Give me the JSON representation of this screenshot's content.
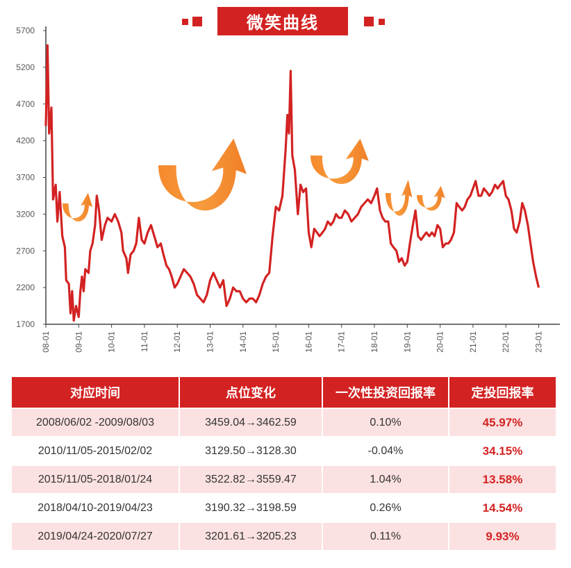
{
  "title": "微笑曲线",
  "chart_data": {
    "type": "line",
    "title": "微笑曲线",
    "ylim": [
      1700,
      5700
    ],
    "yticks": [
      1700,
      2200,
      2700,
      3200,
      3700,
      4200,
      4700,
      5200,
      5700
    ],
    "xticks": [
      "08-01",
      "09-01",
      "10-01",
      "11-01",
      "12-01",
      "13-01",
      "14-01",
      "15-01",
      "16-01",
      "17-01",
      "18-01",
      "19-01",
      "20-01",
      "21-01",
      "22-01",
      "23-01"
    ],
    "x_start": 2008.0,
    "grid": false,
    "series": [
      {
        "color": "#d32222",
        "points": [
          [
            2008.0,
            4400
          ],
          [
            2008.05,
            5500
          ],
          [
            2008.1,
            4300
          ],
          [
            2008.17,
            4650
          ],
          [
            2008.22,
            3400
          ],
          [
            2008.3,
            3600
          ],
          [
            2008.35,
            3100
          ],
          [
            2008.42,
            3500
          ],
          [
            2008.5,
            2900
          ],
          [
            2008.58,
            2750
          ],
          [
            2008.62,
            2300
          ],
          [
            2008.7,
            2250
          ],
          [
            2008.75,
            1850
          ],
          [
            2008.8,
            2150
          ],
          [
            2008.85,
            1750
          ],
          [
            2008.92,
            1950
          ],
          [
            2009.0,
            1800
          ],
          [
            2009.05,
            2150
          ],
          [
            2009.1,
            2350
          ],
          [
            2009.15,
            2150
          ],
          [
            2009.2,
            2450
          ],
          [
            2009.3,
            2400
          ],
          [
            2009.35,
            2700
          ],
          [
            2009.42,
            2800
          ],
          [
            2009.5,
            3050
          ],
          [
            2009.55,
            3450
          ],
          [
            2009.62,
            3250
          ],
          [
            2009.7,
            2850
          ],
          [
            2009.8,
            3050
          ],
          [
            2009.88,
            3150
          ],
          [
            2010.0,
            3100
          ],
          [
            2010.1,
            3200
          ],
          [
            2010.2,
            3100
          ],
          [
            2010.3,
            2950
          ],
          [
            2010.35,
            2700
          ],
          [
            2010.45,
            2600
          ],
          [
            2010.5,
            2400
          ],
          [
            2010.58,
            2650
          ],
          [
            2010.67,
            2700
          ],
          [
            2010.75,
            2800
          ],
          [
            2010.83,
            3150
          ],
          [
            2010.92,
            2850
          ],
          [
            2011.0,
            2800
          ],
          [
            2011.1,
            2950
          ],
          [
            2011.2,
            3050
          ],
          [
            2011.3,
            2900
          ],
          [
            2011.4,
            2750
          ],
          [
            2011.5,
            2800
          ],
          [
            2011.58,
            2650
          ],
          [
            2011.67,
            2500
          ],
          [
            2011.75,
            2450
          ],
          [
            2011.83,
            2350
          ],
          [
            2011.92,
            2200
          ],
          [
            2012.0,
            2250
          ],
          [
            2012.1,
            2350
          ],
          [
            2012.2,
            2450
          ],
          [
            2012.3,
            2400
          ],
          [
            2012.4,
            2350
          ],
          [
            2012.5,
            2250
          ],
          [
            2012.6,
            2100
          ],
          [
            2012.7,
            2050
          ],
          [
            2012.8,
            2000
          ],
          [
            2012.9,
            2100
          ],
          [
            2013.0,
            2300
          ],
          [
            2013.1,
            2400
          ],
          [
            2013.2,
            2300
          ],
          [
            2013.3,
            2200
          ],
          [
            2013.4,
            2300
          ],
          [
            2013.5,
            1950
          ],
          [
            2013.6,
            2050
          ],
          [
            2013.7,
            2200
          ],
          [
            2013.8,
            2150
          ],
          [
            2013.9,
            2150
          ],
          [
            2014.0,
            2050
          ],
          [
            2014.1,
            2000
          ],
          [
            2014.2,
            2050
          ],
          [
            2014.3,
            2050
          ],
          [
            2014.4,
            2000
          ],
          [
            2014.5,
            2100
          ],
          [
            2014.6,
            2250
          ],
          [
            2014.7,
            2350
          ],
          [
            2014.8,
            2400
          ],
          [
            2014.9,
            2900
          ],
          [
            2015.0,
            3300
          ],
          [
            2015.1,
            3250
          ],
          [
            2015.2,
            3450
          ],
          [
            2015.3,
            4100
          ],
          [
            2015.35,
            4550
          ],
          [
            2015.4,
            4300
          ],
          [
            2015.45,
            5150
          ],
          [
            2015.5,
            4000
          ],
          [
            2015.58,
            3800
          ],
          [
            2015.67,
            3200
          ],
          [
            2015.75,
            3600
          ],
          [
            2015.83,
            3500
          ],
          [
            2015.92,
            3550
          ],
          [
            2016.0,
            2950
          ],
          [
            2016.08,
            2750
          ],
          [
            2016.17,
            3000
          ],
          [
            2016.25,
            2950
          ],
          [
            2016.33,
            2900
          ],
          [
            2016.42,
            2950
          ],
          [
            2016.5,
            3000
          ],
          [
            2016.58,
            3100
          ],
          [
            2016.67,
            3050
          ],
          [
            2016.75,
            3100
          ],
          [
            2016.83,
            3200
          ],
          [
            2016.92,
            3150
          ],
          [
            2017.0,
            3150
          ],
          [
            2017.1,
            3250
          ],
          [
            2017.2,
            3200
          ],
          [
            2017.3,
            3100
          ],
          [
            2017.4,
            3150
          ],
          [
            2017.5,
            3200
          ],
          [
            2017.6,
            3300
          ],
          [
            2017.7,
            3350
          ],
          [
            2017.8,
            3400
          ],
          [
            2017.9,
            3350
          ],
          [
            2018.0,
            3450
          ],
          [
            2018.08,
            3550
          ],
          [
            2018.17,
            3250
          ],
          [
            2018.25,
            3150
          ],
          [
            2018.33,
            3100
          ],
          [
            2018.42,
            3100
          ],
          [
            2018.5,
            2800
          ],
          [
            2018.58,
            2750
          ],
          [
            2018.67,
            2700
          ],
          [
            2018.75,
            2550
          ],
          [
            2018.83,
            2600
          ],
          [
            2018.92,
            2500
          ],
          [
            2019.0,
            2550
          ],
          [
            2019.08,
            2800
          ],
          [
            2019.17,
            3050
          ],
          [
            2019.25,
            3250
          ],
          [
            2019.33,
            2900
          ],
          [
            2019.42,
            2850
          ],
          [
            2019.5,
            2900
          ],
          [
            2019.58,
            2950
          ],
          [
            2019.67,
            2900
          ],
          [
            2019.75,
            2950
          ],
          [
            2019.83,
            2900
          ],
          [
            2019.92,
            3050
          ],
          [
            2020.0,
            3000
          ],
          [
            2020.08,
            2750
          ],
          [
            2020.17,
            2800
          ],
          [
            2020.25,
            2800
          ],
          [
            2020.33,
            2850
          ],
          [
            2020.42,
            2950
          ],
          [
            2020.5,
            3350
          ],
          [
            2020.58,
            3300
          ],
          [
            2020.67,
            3250
          ],
          [
            2020.75,
            3300
          ],
          [
            2020.83,
            3400
          ],
          [
            2020.92,
            3450
          ],
          [
            2021.0,
            3550
          ],
          [
            2021.08,
            3650
          ],
          [
            2021.17,
            3450
          ],
          [
            2021.25,
            3450
          ],
          [
            2021.33,
            3550
          ],
          [
            2021.42,
            3500
          ],
          [
            2021.5,
            3450
          ],
          [
            2021.58,
            3500
          ],
          [
            2021.67,
            3600
          ],
          [
            2021.75,
            3550
          ],
          [
            2021.83,
            3600
          ],
          [
            2021.92,
            3650
          ],
          [
            2022.0,
            3450
          ],
          [
            2022.08,
            3400
          ],
          [
            2022.17,
            3250
          ],
          [
            2022.25,
            3000
          ],
          [
            2022.33,
            2950
          ],
          [
            2022.42,
            3100
          ],
          [
            2022.5,
            3350
          ],
          [
            2022.58,
            3250
          ],
          [
            2022.67,
            3050
          ],
          [
            2022.75,
            2800
          ],
          [
            2022.83,
            2550
          ],
          [
            2022.92,
            2350
          ],
          [
            2023.0,
            2200
          ]
        ]
      }
    ]
  },
  "table": {
    "headers": [
      "对应时间",
      "点位变化",
      "一次性投资回报率",
      "定投回报率"
    ],
    "rows": [
      [
        "2008/06/02 -2009/08/03",
        "3459.04→3462.59",
        "0.10%",
        "45.97%"
      ],
      [
        "2010/11/05-2015/02/02",
        "3129.50→3128.30",
        "-0.04%",
        "34.15%"
      ],
      [
        "2015/11/05-2018/01/24",
        "3522.82→3559.47",
        "1.04%",
        "13.58%"
      ],
      [
        "2018/04/10-2019/04/23",
        "3190.32→3198.59",
        "0.26%",
        "14.54%"
      ],
      [
        "2019/04/24-2020/07/27",
        "3201.61→3205.23",
        "0.11%",
        "9.93%"
      ]
    ]
  },
  "colors": {
    "accent": "#d32222",
    "arrow": "#f58a2e",
    "row_tint": "#fbe1e1"
  }
}
